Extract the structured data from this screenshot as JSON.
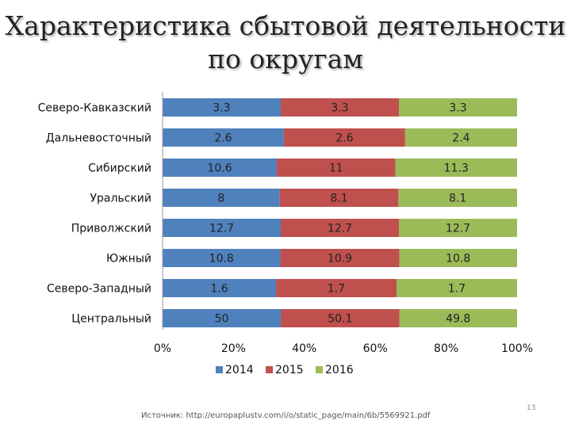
{
  "slide": {
    "title_line1": "Характеристика сбытовой деятельности",
    "title_line2": "по округам",
    "source": "Источник: http://europaplustv.com/i/o/static_page/main/6b/5569921.pdf",
    "page_number": "13"
  },
  "chart_data": {
    "type": "bar",
    "orientation": "horizontal",
    "stacked": "percent",
    "title": "Характеристика сбытовой деятельности по округам",
    "categories": [
      "Северо-Кавказский",
      "Дальневосточный",
      "Сибирский",
      "Уральский",
      "Приволжский",
      "Южный",
      "Северо-Западный",
      "Центральный"
    ],
    "series": [
      {
        "name": "2014",
        "color": "#4f81bd",
        "values": [
          3.3,
          2.6,
          10.6,
          8,
          12.7,
          10.8,
          1.6,
          50
        ]
      },
      {
        "name": "2015",
        "color": "#c0504d",
        "values": [
          3.3,
          2.6,
          11,
          8.1,
          12.7,
          10.9,
          1.7,
          50.1
        ]
      },
      {
        "name": "2016",
        "color": "#9bbb59",
        "values": [
          3.3,
          2.4,
          11.3,
          8.1,
          12.7,
          10.8,
          1.7,
          49.8
        ]
      }
    ],
    "xticks": [
      "0%",
      "20%",
      "40%",
      "60%",
      "80%",
      "100%"
    ],
    "xlim": [
      0,
      100
    ],
    "legend": "bottom",
    "grid": false
  }
}
